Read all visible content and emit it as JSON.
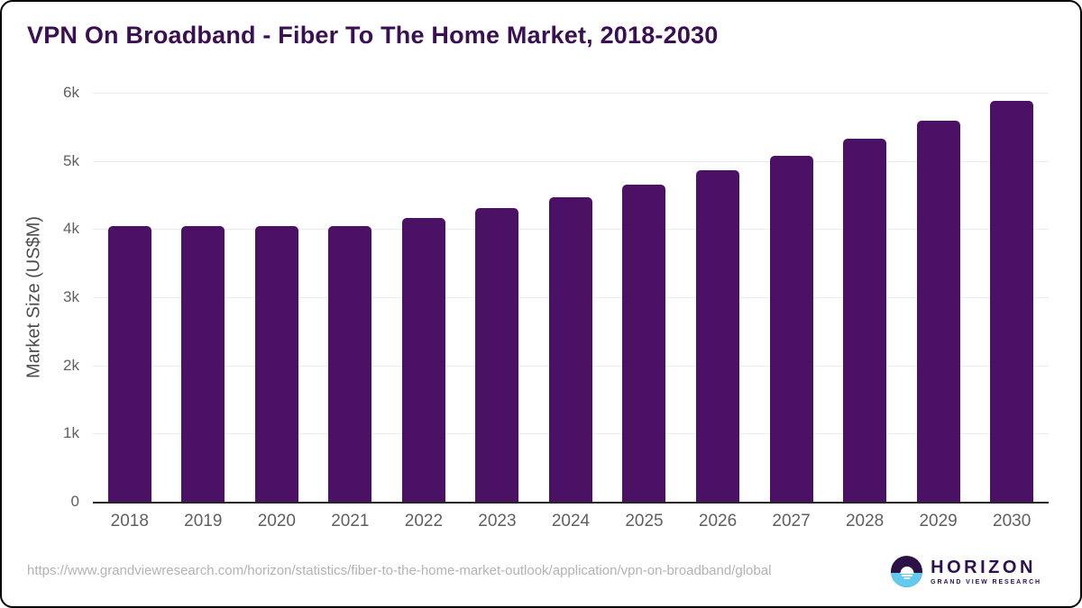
{
  "title": "VPN On Broadband - Fiber To The Home Market, 2018-2030",
  "chart_data": {
    "type": "bar",
    "categories": [
      "2018",
      "2019",
      "2020",
      "2021",
      "2022",
      "2023",
      "2024",
      "2025",
      "2026",
      "2027",
      "2028",
      "2029",
      "2030"
    ],
    "values": [
      4050,
      4040,
      4040,
      4050,
      4160,
      4310,
      4470,
      4650,
      4860,
      5080,
      5330,
      5590,
      5880
    ],
    "title": "VPN On Broadband - Fiber To The Home Market, 2018-2030",
    "xlabel": "",
    "ylabel": "Market Size (US$M)",
    "yticks": [
      "0",
      "1k",
      "2k",
      "3k",
      "4k",
      "5k",
      "6k"
    ],
    "ylim": [
      0,
      6000
    ],
    "grid": true,
    "legend": "none",
    "bar_color": "#4B1164"
  },
  "footer": {
    "source_url": "https://www.grandviewresearch.com/horizon/statistics/fiber-to-the-home-market-outlook/application/vpn-on-broadband/global",
    "logo": {
      "name": "HORIZON",
      "subtitle": "GRAND VIEW RESEARCH"
    }
  },
  "colors": {
    "bar": "#4B1164",
    "title": "#3B1053",
    "grid": "#ECECEC",
    "axis": "#262626",
    "tick_text": "#5F6062",
    "ylabel_text": "#4D4D4D",
    "url_text": "#B3B3B3",
    "logo_purple": "#2F1050",
    "logo_circle_top": "#2C1146",
    "logo_circle_bottom": "#62C9EF",
    "frame_border": "#000000"
  }
}
